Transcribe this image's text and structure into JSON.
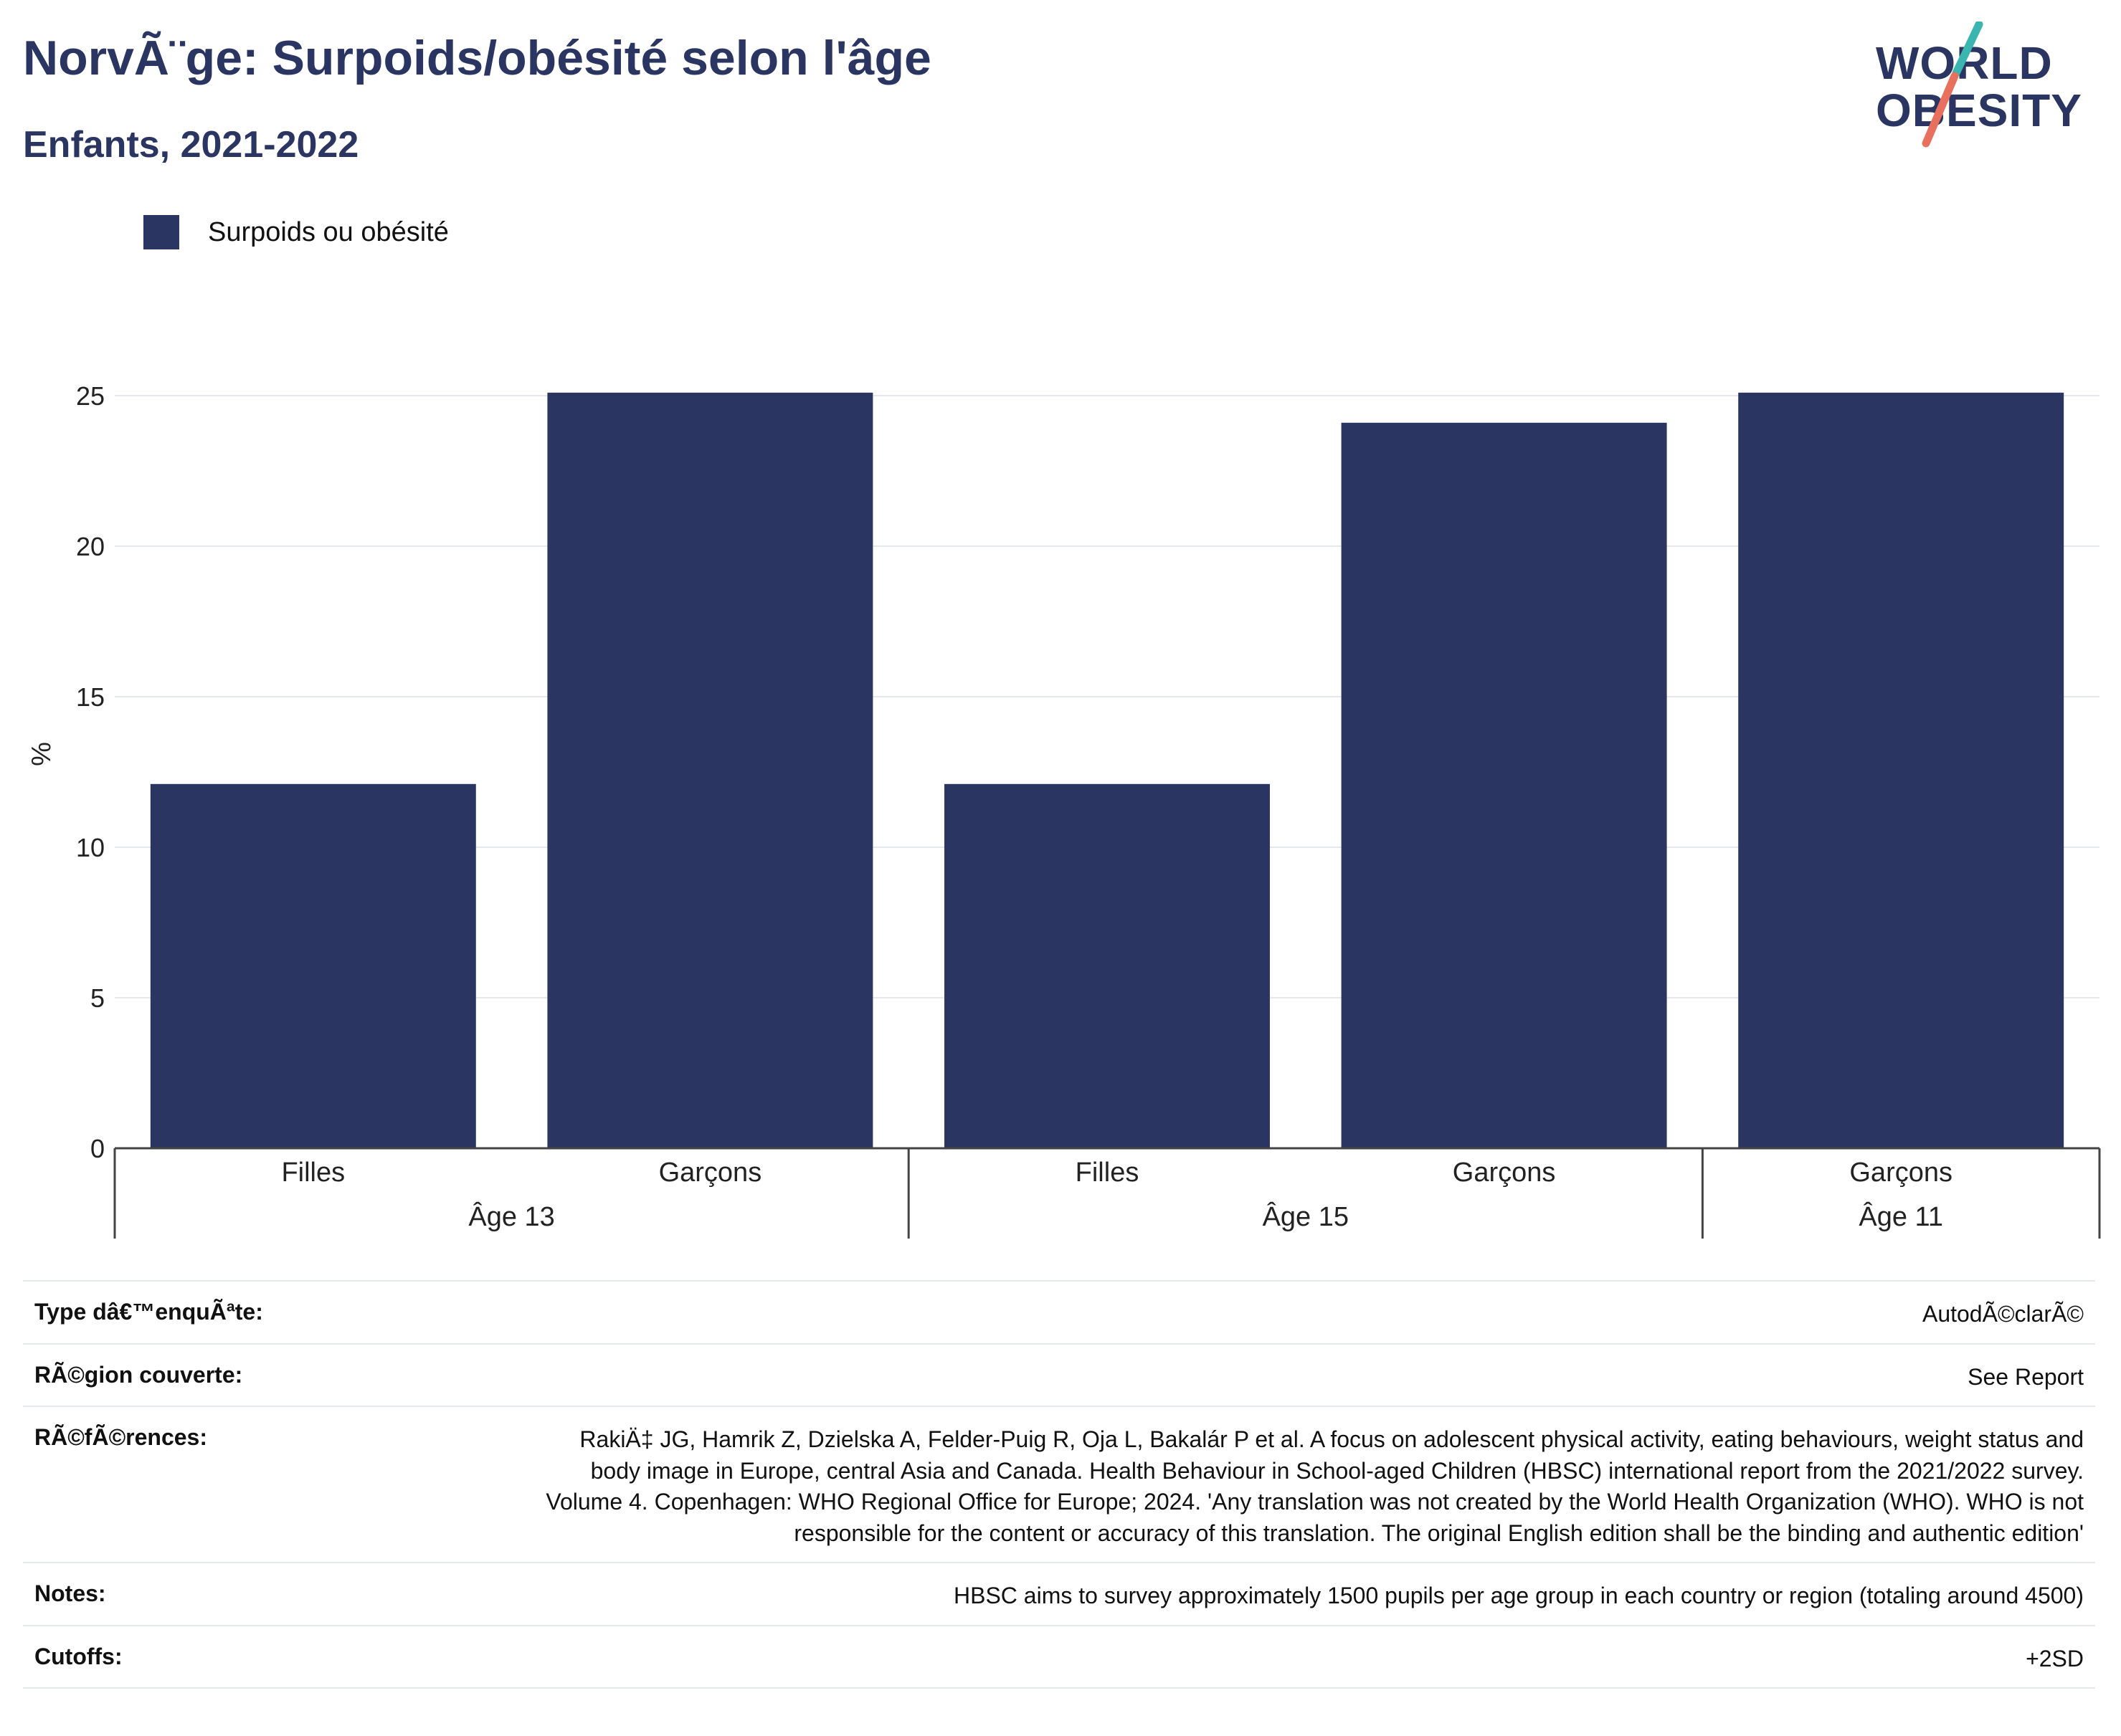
{
  "title": "NorvÃ¨ge: Surpoids/obésité selon l'âge",
  "subtitle": "Enfants, 2021-2022",
  "logo": {
    "line1": "WORLD",
    "line2": "OBESITY"
  },
  "colors": {
    "bar": "#2b3561",
    "accent_teal": "#3ab5b0",
    "accent_coral": "#e8705f",
    "grid": "#e6e8ef"
  },
  "chart_data": {
    "type": "bar",
    "title": "NorvÃ¨ge: Surpoids/obésité selon l'âge",
    "subtitle": "Enfants, 2021-2022",
    "ylabel": "%",
    "ylim": [
      0,
      25.5
    ],
    "yticks": [
      0,
      5,
      10,
      15,
      20,
      25
    ],
    "grid": true,
    "legend_position": "top-left",
    "groups": [
      {
        "label": "Âge 13",
        "categories": [
          "Filles",
          "Garçons"
        ],
        "values": [
          12.1,
          25.1
        ]
      },
      {
        "label": "Âge 15",
        "categories": [
          "Filles",
          "Garçons"
        ],
        "values": [
          12.1,
          24.1
        ]
      },
      {
        "label": "Âge 11",
        "categories": [
          "Garçons"
        ],
        "values": [
          25.1
        ]
      }
    ],
    "series": [
      {
        "name": "Surpoids ou obésité",
        "color": "#2b3561"
      }
    ]
  },
  "info_rows": [
    {
      "label": "Type dâ€™enquÃªte:",
      "value": "AutodÃ©clarÃ©"
    },
    {
      "label": "RÃ©gion couverte:",
      "value": "See Report"
    },
    {
      "label": "RÃ©fÃ©rences:",
      "value": "RakiÄ‡ JG, Hamrik Z, Dzielska A, Felder-Puig R, Oja L, Bakalár P et al. A focus on adolescent physical activity, eating behaviours, weight status and body image in Europe, central Asia and Canada. Health Behaviour in School-aged Children (HBSC) international report from the 2021/2022 survey. Volume 4. Copenhagen: WHO Regional Office for Europe; 2024. 'Any translation was not created by the World Health Organization (WHO). WHO is not responsible for the content or accuracy of this translation. The original English edition shall be the binding and authentic edition'"
    },
    {
      "label": "Notes:",
      "value": "HBSC aims to survey approximately 1500 pupils per age group in each country or region (totaling around 4500)"
    },
    {
      "label": "Cutoffs:",
      "value": "+2SD"
    }
  ]
}
